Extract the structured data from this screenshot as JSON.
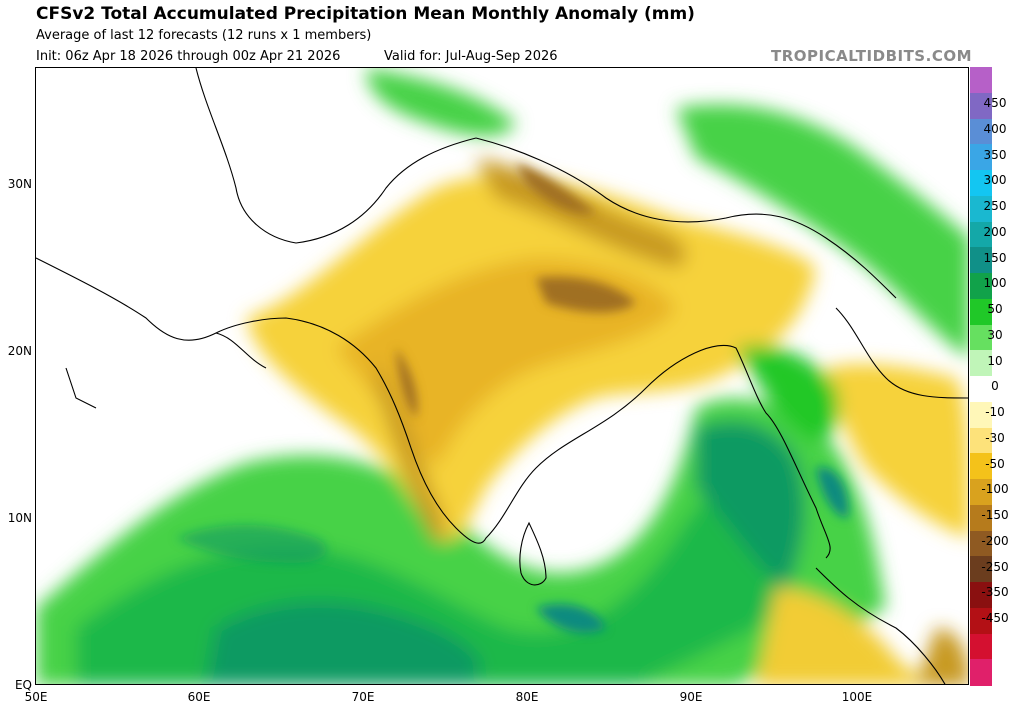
{
  "header": {
    "title": "CFSv2 Total Accumulated Precipitation Mean Monthly Anomaly (mm)",
    "subtitle": "Average of last 12 forecasts (12 runs x 1 members)",
    "init": "Init: 06z Apr 18 2026 through 00z Apr 21 2026",
    "valid": "Valid for: Jul-Aug-Sep 2026",
    "brand": "TROPICALTIDBITS.COM"
  },
  "axes": {
    "lat_labels": [
      "30N",
      "20N",
      "10N",
      "EQ"
    ],
    "lon_labels": [
      "50E",
      "60E",
      "70E",
      "80E",
      "90E",
      "100E"
    ]
  },
  "colorbar": {
    "labels": [
      "450",
      "400",
      "350",
      "300",
      "250",
      "200",
      "150",
      "100",
      "50",
      "30",
      "10",
      "0",
      "-10",
      "-30",
      "-50",
      "-100",
      "-150",
      "-200",
      "-250",
      "-350",
      "-450"
    ],
    "colors": [
      "#b660c8",
      "#8068c4",
      "#5a8ed6",
      "#3aa6e6",
      "#13c6f2",
      "#1ab8d0",
      "#14a8a8",
      "#109088",
      "#11a24a",
      "#20c828",
      "#66e060",
      "#c0f5b8",
      "#ffffff",
      "#fff7b8",
      "#fde27a",
      "#f4c21a",
      "#d9a21e",
      "#b67b1c",
      "#8f5a22",
      "#6b3d1e",
      "#8a1010",
      "#b31015",
      "#d41030",
      "#e0206a"
    ]
  }
}
